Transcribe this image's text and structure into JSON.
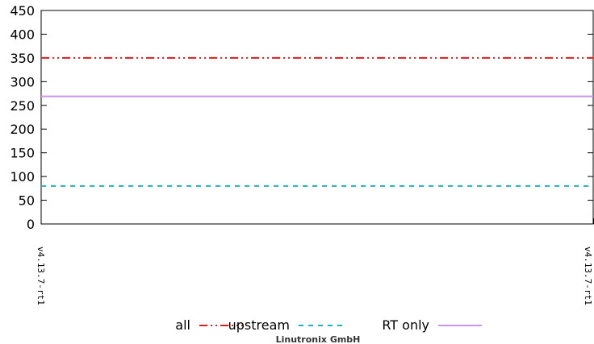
{
  "chart_data": {
    "type": "line",
    "categories": [
      "v4.13.7-rt1",
      "v4.13.7-rt1"
    ],
    "ylim": [
      0,
      450
    ],
    "yticks": [
      0,
      50,
      100,
      150,
      200,
      250,
      300,
      350,
      400,
      450
    ],
    "grid": false,
    "legend_position": "bottom-center",
    "series": [
      {
        "name": "all",
        "values": [
          350,
          350
        ],
        "color": "#e31a1c",
        "dash": "dash-dot-dot"
      },
      {
        "name": "upstream",
        "values": [
          80,
          80
        ],
        "color": "#1fb3bd",
        "dash": "dashed"
      },
      {
        "name": "RT only",
        "values": [
          269,
          269
        ],
        "color": "#c896e6",
        "dash": "solid"
      }
    ],
    "credit": "Linutronix GmbH"
  }
}
